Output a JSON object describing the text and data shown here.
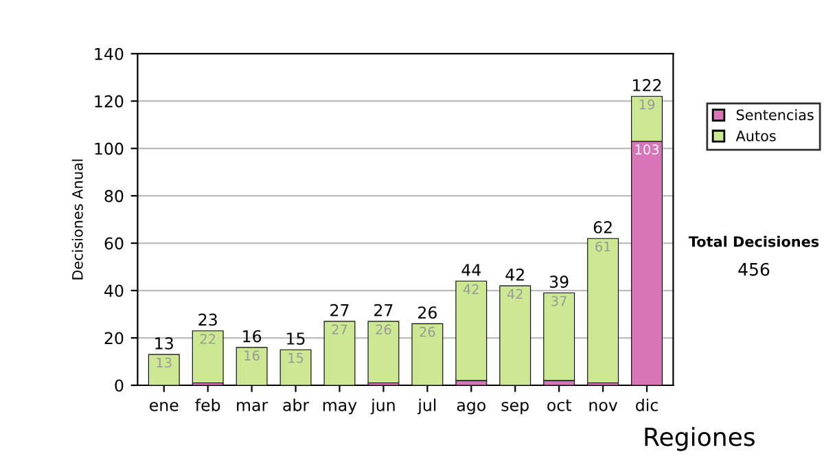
{
  "chart_data": {
    "type": "bar",
    "stacked": true,
    "ylabel": "Decisiones Anual",
    "categories": [
      "ene",
      "feb",
      "mar",
      "abr",
      "may",
      "jun",
      "jul",
      "ago",
      "sep",
      "oct",
      "nov",
      "dic"
    ],
    "series": [
      {
        "name": "Sentencias",
        "color": "#d875b8",
        "values": [
          0,
          1,
          0,
          0,
          0,
          1,
          0,
          2,
          0,
          2,
          1,
          103
        ],
        "value_labels": [
          null,
          null,
          null,
          null,
          null,
          null,
          null,
          null,
          null,
          null,
          null,
          "103"
        ]
      },
      {
        "name": "Autos",
        "color": "#cde893",
        "values": [
          13,
          22,
          16,
          15,
          27,
          26,
          26,
          42,
          42,
          37,
          61,
          19
        ],
        "value_labels": [
          "13",
          "22",
          "16",
          "15",
          "27",
          "26",
          "26",
          "42",
          "42",
          "37",
          "61",
          "19"
        ]
      }
    ],
    "totals": [
      "13",
      "23",
      "16",
      "15",
      "27",
      "27",
      "26",
      "44",
      "42",
      "39",
      "62",
      "122"
    ],
    "ylim": [
      0,
      140
    ],
    "yticks": [
      0,
      20,
      40,
      60,
      80,
      100,
      120,
      140
    ],
    "grid": "y",
    "legend": "right",
    "annotations": [
      "Total Decisiones",
      "456",
      "Regiones"
    ]
  }
}
